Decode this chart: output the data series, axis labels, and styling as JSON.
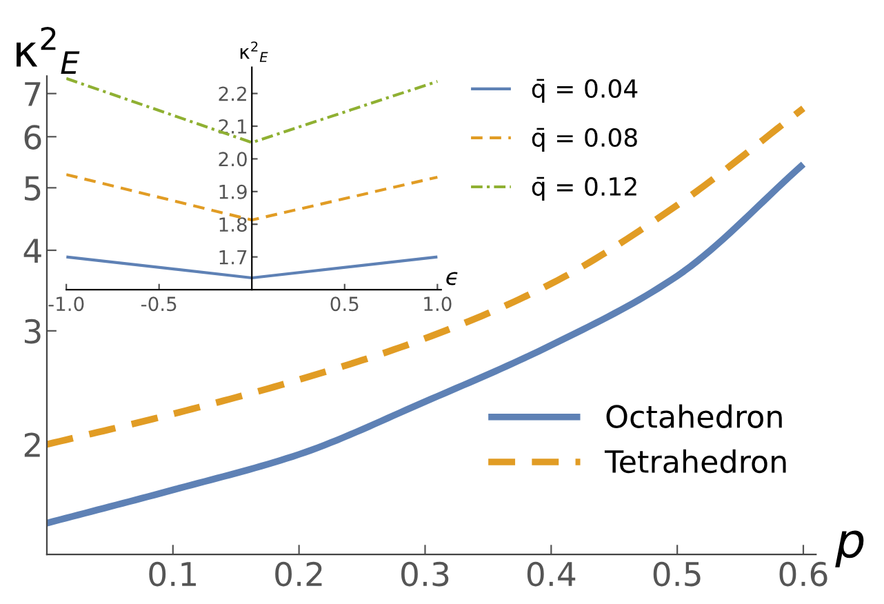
{
  "chart_data": [
    {
      "type": "line",
      "xlabel": "p",
      "ylabel": "κ$^{2}$$_{E}$",
      "x": [
        0,
        0.1,
        0.2,
        0.3,
        0.4,
        0.5,
        0.6
      ],
      "log": "y",
      "xlim": [
        0,
        0.61
      ],
      "ylim": [
        1.35,
        7.45
      ],
      "xticks": [
        0.1,
        0.2,
        0.3,
        0.4,
        0.5,
        0.6
      ],
      "yticks": [
        2,
        3,
        4,
        5,
        6,
        7
      ],
      "grid": false,
      "legend": "bottom right",
      "series": [
        {
          "name": "Octahedron",
          "color": "#5e81b5",
          "line_style": "solid",
          "values": [
            1.51,
            1.7,
            1.93,
            2.33,
            2.85,
            3.65,
            5.44
          ]
        },
        {
          "name": "Tetrahedron",
          "color": "#e19c24",
          "line_style": "dashed",
          "values": [
            2.0,
            2.23,
            2.52,
            2.92,
            3.55,
            4.7,
            6.64
          ]
        }
      ]
    },
    {
      "type": "line",
      "xlabel": "ϵ",
      "ylabel": "κ$^{2}$$_{E}$",
      "x": [
        -1,
        0,
        1
      ],
      "xlim": [
        -1,
        1.02
      ],
      "ylim": [
        1.6,
        2.28
      ],
      "xticks": [
        {
          "value": -1,
          "label": "-1.0"
        },
        -0.5,
        0.5,
        {
          "value": 1,
          "label": "1.0"
        }
      ],
      "yticks": [
        1.7,
        1.8,
        1.9,
        {
          "value": 2,
          "label": "2.0"
        },
        2.1,
        2.2
      ],
      "grid": false,
      "legend": "right",
      "series": [
        {
          "name": "q̄ = 0.04",
          "color": "#5e81b5",
          "line_style": "solid",
          "values": [
            1.7,
            1.636,
            1.7
          ]
        },
        {
          "name": "q̄ = 0.08",
          "color": "#e19c24",
          "line_style": "dashed",
          "values": [
            1.952,
            1.813,
            1.944
          ]
        },
        {
          "name": "q̄ = 0.12",
          "color": "#8fb032",
          "line_style": "dashdot",
          "values": [
            2.246,
            2.05,
            2.237
          ]
        }
      ]
    }
  ]
}
